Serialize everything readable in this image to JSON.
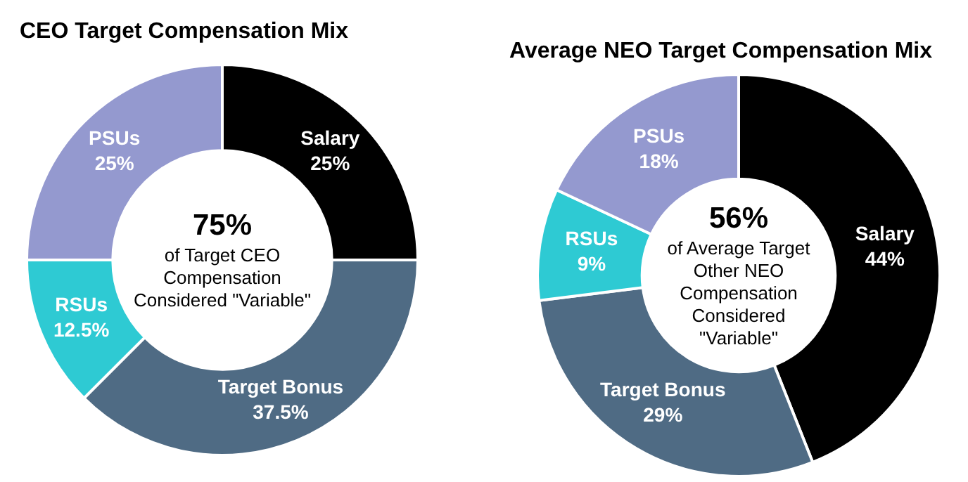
{
  "chart_data": [
    {
      "type": "donut",
      "title": "CEO Target Compensation Mix",
      "categories": [
        "Salary",
        "Target Bonus",
        "RSUs",
        "PSUs"
      ],
      "values": [
        25,
        37.5,
        12.5,
        25
      ],
      "colors": [
        "#000000",
        "#4f6b84",
        "#2ecad3",
        "#9499cf"
      ],
      "value_labels": [
        "25%",
        "37.5%",
        "12.5%",
        "25%"
      ],
      "legend": false,
      "annotations": [
        "75%",
        "of Target CEO Compensation Considered \"Variable\""
      ]
    },
    {
      "type": "donut",
      "title": "Average NEO Target Compensation Mix",
      "categories": [
        "Salary",
        "Target Bonus",
        "RSUs",
        "PSUs"
      ],
      "values": [
        44,
        29,
        9,
        18
      ],
      "colors": [
        "#000000",
        "#4f6b84",
        "#2ecad3",
        "#9499cf"
      ],
      "value_labels": [
        "44%",
        "29%",
        "9%",
        "18%"
      ],
      "legend": false,
      "annotations": [
        "56%",
        "of Average Target Other NEO Compensation Considered \"Variable\""
      ]
    }
  ]
}
